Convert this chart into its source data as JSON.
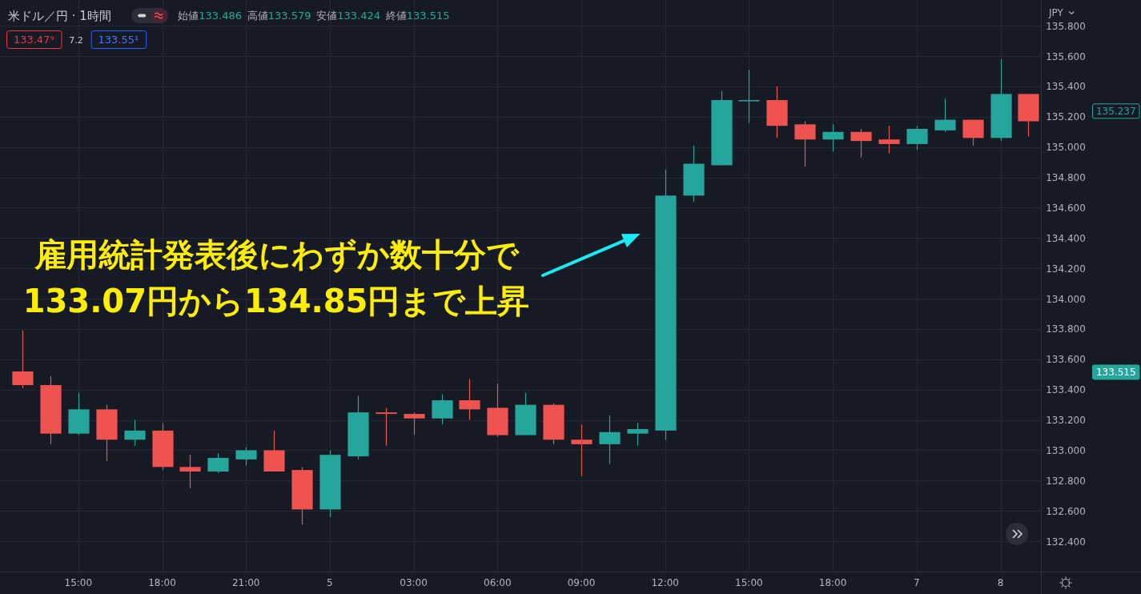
{
  "chart_data": {
    "type": "candlestick",
    "title": "米ドル／円 · 1時間",
    "ylabel": "JPY",
    "categories": [
      null,
      null,
      "15:00",
      null,
      null,
      "18:00",
      null,
      null,
      "21:00",
      null,
      null,
      "5",
      null,
      null,
      "03:00",
      null,
      null,
      "06:00",
      null,
      null,
      "09:00",
      null,
      null,
      "12:00",
      null,
      null,
      "15:00",
      null,
      null,
      "18:00",
      null,
      null,
      "7",
      null,
      null,
      "8",
      null
    ],
    "ohlc": [
      [
        133.52,
        133.79,
        133.41,
        133.43
      ],
      [
        133.43,
        133.49,
        133.04,
        133.11
      ],
      [
        133.11,
        133.38,
        133.1,
        133.27
      ],
      [
        133.27,
        133.3,
        132.93,
        133.07
      ],
      [
        133.07,
        133.2,
        133.03,
        133.13
      ],
      [
        133.13,
        133.18,
        132.87,
        132.89
      ],
      [
        132.89,
        132.97,
        132.75,
        132.86
      ],
      [
        132.86,
        132.98,
        132.85,
        132.95
      ],
      [
        132.94,
        133.02,
        132.9,
        133.0
      ],
      [
        133.0,
        133.13,
        132.86,
        132.86
      ],
      [
        132.87,
        132.89,
        132.51,
        132.61
      ],
      [
        132.61,
        133.0,
        132.56,
        132.97
      ],
      [
        132.96,
        133.36,
        132.94,
        133.25
      ],
      [
        133.25,
        133.28,
        133.03,
        133.24
      ],
      [
        133.24,
        133.25,
        133.1,
        133.21
      ],
      [
        133.21,
        133.37,
        133.17,
        133.33
      ],
      [
        133.33,
        133.47,
        133.2,
        133.27
      ],
      [
        133.28,
        133.44,
        133.09,
        133.1
      ],
      [
        133.1,
        133.38,
        133.1,
        133.3
      ],
      [
        133.3,
        133.31,
        133.04,
        133.07
      ],
      [
        133.07,
        133.17,
        132.83,
        133.04
      ],
      [
        133.04,
        133.23,
        132.91,
        133.12
      ],
      [
        133.11,
        133.18,
        133.03,
        133.14
      ],
      [
        133.13,
        134.85,
        133.07,
        134.68
      ],
      [
        134.68,
        135.01,
        134.64,
        134.89
      ],
      [
        134.88,
        135.37,
        134.88,
        135.31
      ],
      [
        135.31,
        135.51,
        135.16,
        135.31
      ],
      [
        135.31,
        135.4,
        135.06,
        135.14
      ],
      [
        135.15,
        135.17,
        134.87,
        135.05
      ],
      [
        135.05,
        135.15,
        134.97,
        135.1
      ],
      [
        135.1,
        135.12,
        134.93,
        135.04
      ],
      [
        135.05,
        135.14,
        134.96,
        135.02
      ],
      [
        135.02,
        135.14,
        134.98,
        135.12
      ],
      [
        135.11,
        135.32,
        135.1,
        135.18
      ],
      [
        135.18,
        135.18,
        135.01,
        135.06
      ],
      [
        135.06,
        135.58,
        135.04,
        135.35
      ],
      [
        135.35,
        135.35,
        135.07,
        135.17
      ]
    ],
    "colors": [
      "#ef5350",
      "#ef5350",
      "#26a69a",
      "#ef5350",
      "#26a69a",
      "#ef5350",
      "#ef5350",
      "#26a69a",
      "#26a69a",
      "#ef5350",
      "#ef5350",
      "#26a69a",
      "#26a69a",
      "#ef5350",
      "#ef5350",
      "#26a69a",
      "#ef5350",
      "#ef5350",
      "#26a69a",
      "#ef5350",
      "#ef5350",
      "#26a69a",
      "#26a69a",
      "#26a69a",
      "#26a69a",
      "#26a69a",
      "#26a69a",
      "#ef5350",
      "#ef5350",
      "#26a69a",
      "#ef5350",
      "#ef5350",
      "#26a69a",
      "#26a69a",
      "#ef5350",
      "#26a69a",
      "#ef5350"
    ],
    "ylim": [
      132.2,
      135.97
    ],
    "yticks": [
      {
        "value": 132.4,
        "label": "132.400"
      },
      {
        "value": 132.6,
        "label": "132.600"
      },
      {
        "value": 132.8,
        "label": "132.800"
      },
      {
        "value": 133.0,
        "label": "133.000"
      },
      {
        "value": 133.2,
        "label": "133.200"
      },
      {
        "value": 133.4,
        "label": "133.400"
      },
      {
        "value": 133.6,
        "label": "133.600"
      },
      {
        "value": 133.8,
        "label": "133.800"
      },
      {
        "value": 134.0,
        "label": "134.000"
      },
      {
        "value": 134.2,
        "label": "134.200"
      },
      {
        "value": 134.4,
        "label": "134.400"
      },
      {
        "value": 134.6,
        "label": "134.600"
      },
      {
        "value": 134.8,
        "label": "134.800"
      },
      {
        "value": 135.0,
        "label": "135.000"
      },
      {
        "value": 135.2,
        "label": "135.200"
      },
      {
        "value": 135.4,
        "label": "135.400"
      },
      {
        "value": 135.6,
        "label": "135.600"
      },
      {
        "value": 135.8,
        "label": "135.800"
      }
    ],
    "grid": true,
    "annotations": [
      "始値133.486",
      "高値133.579",
      "安値133.424",
      "終値133.515",
      "133.47⁹",
      "7.2",
      "133.55¹",
      "雇用統計発表後にわずか数十分で\n133.07円から134.85円まで上昇",
      "135.237",
      "133.515"
    ]
  }
}
